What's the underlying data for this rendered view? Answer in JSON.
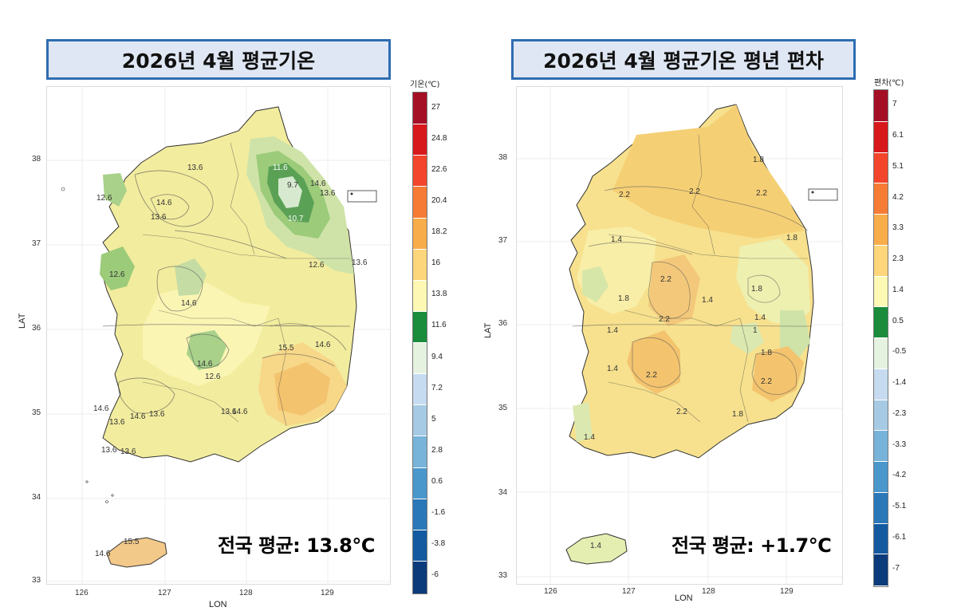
{
  "left": {
    "title": "2026년 4월 평균기온",
    "legend_title": "기온(℃)",
    "legend": [
      {
        "label": "27",
        "color": "#a50f26"
      },
      {
        "label": "24.8",
        "color": "#d7191c"
      },
      {
        "label": "22.6",
        "color": "#f2452b"
      },
      {
        "label": "20.4",
        "color": "#f67b35"
      },
      {
        "label": "18.2",
        "color": "#f9ac4a"
      },
      {
        "label": "16",
        "color": "#fdd57a"
      },
      {
        "label": "13.8",
        "color": "#fdf8b4"
      },
      {
        "label": "11.6",
        "color": "#1a8c3b"
      },
      {
        "label": "9.4",
        "color": "#e6f2e0"
      },
      {
        "label": "7.2",
        "color": "#c6dbef"
      },
      {
        "label": "5",
        "color": "#a6cae3"
      },
      {
        "label": "2.8",
        "color": "#78b3d9"
      },
      {
        "label": "0.6",
        "color": "#4a97cb"
      },
      {
        "label": "-1.6",
        "color": "#2a78b8"
      },
      {
        "label": "-3.8",
        "color": "#145aa1"
      },
      {
        "label": "-6",
        "color": "#0b3b7a"
      }
    ],
    "x_ticks": [
      "126",
      "127",
      "128",
      "129"
    ],
    "y_ticks": [
      "38",
      "37",
      "36",
      "35",
      "34",
      "33"
    ],
    "xlabel": "LON",
    "ylabel": "LAT",
    "average": "전국 평균: 13.8℃",
    "contour_labels": [
      "13.6",
      "14.6",
      "13.6",
      "12.6",
      "11.6",
      "9.7",
      "14.6",
      "13.6",
      "10.7",
      "12.6",
      "13.6",
      "12.6",
      "14.6",
      "14.6",
      "15.5",
      "14.6",
      "12.6",
      "13.6",
      "14.6",
      "13.6",
      "13.6",
      "13.6",
      "13.6",
      "14.6",
      "14.6",
      "15.5",
      "14.6"
    ]
  },
  "right": {
    "title": "2026년 4월 평균기온 평년 편차",
    "legend_title": "편차(℃)",
    "legend": [
      {
        "label": "7",
        "color": "#a50f26"
      },
      {
        "label": "6.1",
        "color": "#d7191c"
      },
      {
        "label": "5.1",
        "color": "#f2452b"
      },
      {
        "label": "4.2",
        "color": "#f67b35"
      },
      {
        "label": "3.3",
        "color": "#f9ac4a"
      },
      {
        "label": "2.3",
        "color": "#fdd57a"
      },
      {
        "label": "1.4",
        "color": "#fdf8b4"
      },
      {
        "label": "0.5",
        "color": "#1a8c3b"
      },
      {
        "label": "-0.5",
        "color": "#e6f2e0"
      },
      {
        "label": "-1.4",
        "color": "#c6dbef"
      },
      {
        "label": "-2.3",
        "color": "#a6cae3"
      },
      {
        "label": "-3.3",
        "color": "#78b3d9"
      },
      {
        "label": "-4.2",
        "color": "#4a97cb"
      },
      {
        "label": "-5.1",
        "color": "#2a78b8"
      },
      {
        "label": "-6.1",
        "color": "#145aa1"
      },
      {
        "label": "-7",
        "color": "#0b3b7a"
      }
    ],
    "x_ticks": [
      "126",
      "127",
      "128",
      "129"
    ],
    "y_ticks": [
      "38",
      "37",
      "36",
      "35",
      "34",
      "33"
    ],
    "xlabel": "LON",
    "ylabel": "LAT",
    "average": "전국 평균: +1.7℃",
    "contour_labels": [
      "2.2",
      "1.8",
      "2.2",
      "2.2",
      "2.2",
      "1.8",
      "1.4",
      "2.2",
      "1.8",
      "1.8",
      "1.4",
      "2.2",
      "1.4",
      "1.4",
      "1",
      "1.4",
      "1.8",
      "2.2",
      "2.2",
      "1.8",
      "1.4",
      "1.4"
    ]
  }
}
